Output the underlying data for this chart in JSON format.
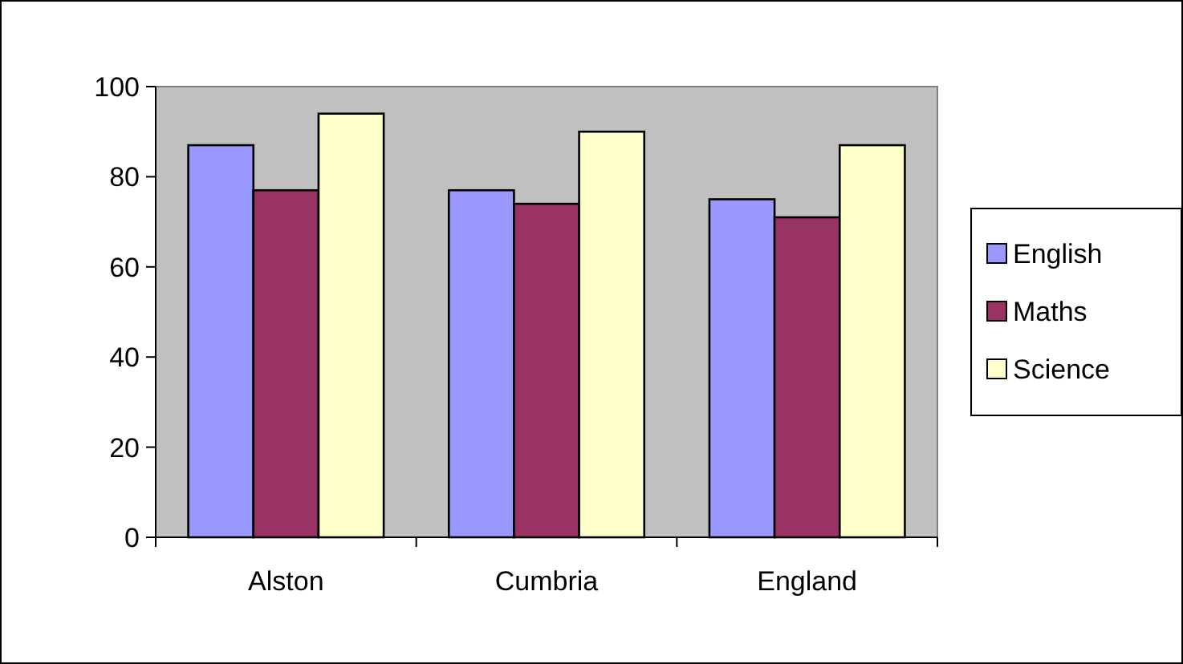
{
  "chart_data": {
    "type": "bar",
    "categories": [
      "Alston",
      "Cumbria",
      "England"
    ],
    "series": [
      {
        "name": "English",
        "color": "#9999ff",
        "values": [
          87,
          77,
          75
        ]
      },
      {
        "name": "Maths",
        "color": "#993366",
        "values": [
          77,
          74,
          71
        ]
      },
      {
        "name": "Science",
        "color": "#ffffcc",
        "values": [
          94,
          90,
          87
        ]
      }
    ],
    "ylim": [
      0,
      100
    ],
    "yticks": [
      0,
      20,
      40,
      60,
      80,
      100
    ],
    "grid": false,
    "legend": "right"
  }
}
